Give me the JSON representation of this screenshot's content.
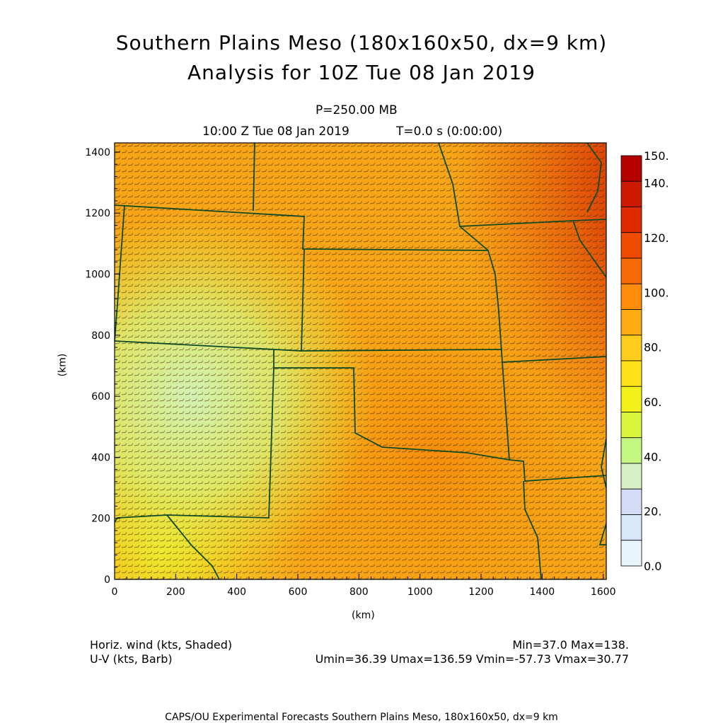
{
  "title_line1": "Southern Plains Meso (180x160x50, dx=9 km)",
  "title_line2": "Analysis for 10Z Tue 08 Jan 2019",
  "level_label": "P=250.00 MB",
  "time_label": "10:00 Z Tue 08 Jan 2019",
  "integration_label": "T=0.0 s (0:00:00)",
  "axes": {
    "x_label": "(km)",
    "y_label": "(km)",
    "x_ticks": [
      "0",
      "200",
      "400",
      "600",
      "800",
      "1000",
      "1200",
      "1400",
      "1600"
    ],
    "y_ticks": [
      "0",
      "200",
      "400",
      "600",
      "800",
      "1000",
      "1200",
      "1400"
    ]
  },
  "colorbar": {
    "labels": [
      "150.",
      "140.",
      "120.",
      "100.",
      "80.",
      "60.",
      "40.",
      "20.",
      "0.0"
    ],
    "colors": [
      "#b50000",
      "#cc1a00",
      "#e02a00",
      "#f04a00",
      "#f76a05",
      "#ff8c0a",
      "#ffac14",
      "#ffcd1f",
      "#ffe21a",
      "#f2f21a",
      "#d9f53c",
      "#c3f782",
      "#d7f0c8",
      "#d5dcf7",
      "#d8e8fa",
      "#e8f5fb"
    ]
  },
  "legend": {
    "field_label": "Horiz. wind (kts, Shaded)",
    "vector_label": "U-V (kts, Barb)",
    "minmax": "Min=37.0 Max=138.",
    "uv_stats": "Umin=36.39 Umax=136.59 Vmin=-57.73 Vmax=30.77"
  },
  "footer": "CAPS/OU Experimental Forecasts  Southern Plains Meso, 180x160x50, dx=9 km"
}
